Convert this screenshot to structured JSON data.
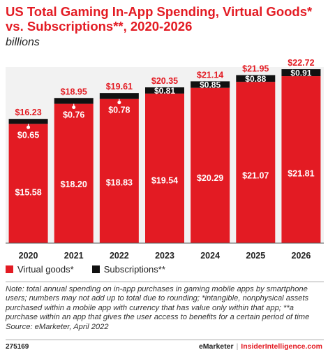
{
  "title": "US Total Gaming In-App Spending, Virtual Goods* vs. Subscriptions**, 2020-2026",
  "subtitle": "billions",
  "colors": {
    "virtual": "#e31b23",
    "subscriptions": "#111111",
    "accent": "#e31b23"
  },
  "chart_data": {
    "type": "bar",
    "stacked": true,
    "categories": [
      "2020",
      "2021",
      "2022",
      "2023",
      "2024",
      "2025",
      "2026"
    ],
    "series": [
      {
        "name": "Virtual goods*",
        "values": [
          15.58,
          18.2,
          18.83,
          19.54,
          20.29,
          21.07,
          21.81
        ],
        "labels": [
          "$15.58",
          "$18.20",
          "$18.83",
          "$19.54",
          "$20.29",
          "$21.07",
          "$21.81"
        ]
      },
      {
        "name": "Subscriptions**",
        "values": [
          0.65,
          0.76,
          0.78,
          0.81,
          0.85,
          0.88,
          0.91
        ],
        "labels": [
          "$0.65",
          "$0.76",
          "$0.78",
          "$0.81",
          "$0.85",
          "$0.88",
          "$0.91"
        ]
      }
    ],
    "totals": [
      16.23,
      18.95,
      19.61,
      20.35,
      21.14,
      21.95,
      22.72
    ],
    "total_labels": [
      "$16.23",
      "$18.95",
      "$19.61",
      "$20.35",
      "$21.14",
      "$21.95",
      "$22.72"
    ],
    "ylim": [
      0,
      23
    ],
    "grid": false,
    "legend_position": "bottom-left"
  },
  "legend": {
    "virtual": "Virtual goods*",
    "subscriptions": "Subscriptions**"
  },
  "note": {
    "text": "Note: total annual spending on in-app purchases in gaming mobile apps by smartphone users; numbers may not add up to total due to rounding; *intangible, nonphysical assets purchased within a mobile app with currency that has value only within that app; **a purchase within an app that gives the user access to benefits for a certain period of time",
    "source": "Source: eMarketer, April 2022"
  },
  "footer": {
    "id": "275169",
    "brand_left": "eMarketer",
    "brand_divider": "|",
    "brand_right": "InsiderIntelligence.com"
  }
}
